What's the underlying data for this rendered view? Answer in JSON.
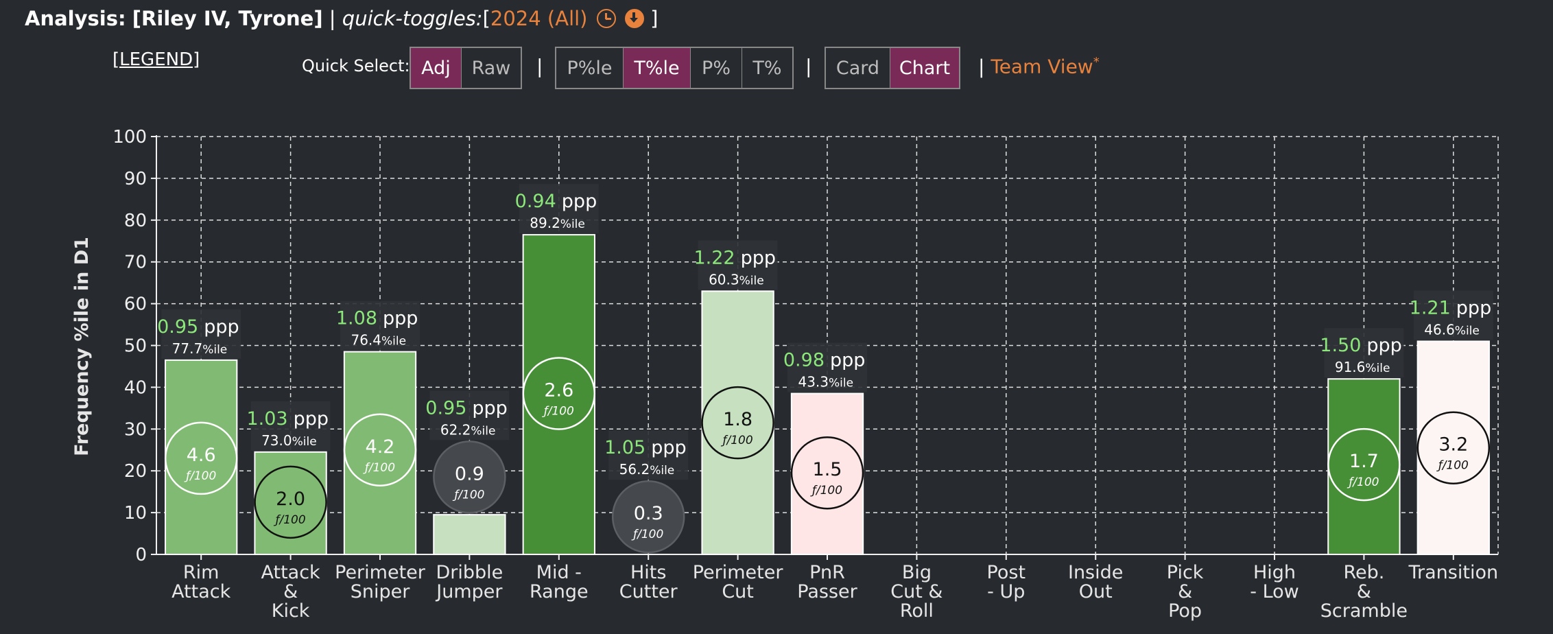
{
  "header": {
    "prefix": "Analysis:",
    "players": "[Riley IV, Tyrone]",
    "sep": "|",
    "toggles_label": "quick-toggles:",
    "open_bracket": "[",
    "season": "2024 (All)",
    "close_bracket": "]"
  },
  "legend_label": "[LEGEND]",
  "quick_select": {
    "label": "Quick Select:",
    "group1": [
      {
        "label": "Adj",
        "active": true
      },
      {
        "label": "Raw",
        "active": false
      }
    ],
    "group2": [
      {
        "label": "P%le",
        "active": false
      },
      {
        "label": "T%le",
        "active": true
      },
      {
        "label": "P%",
        "active": false
      },
      {
        "label": "T%",
        "active": false
      }
    ],
    "group3": [
      {
        "label": "Card",
        "active": false
      },
      {
        "label": "Chart",
        "active": true
      }
    ],
    "separator": "|",
    "team_view_label": "Team View",
    "team_view_mark": "*"
  },
  "chart_data": {
    "type": "bar",
    "ylabel": "Frequency %ile in D1",
    "ylim": [
      0,
      100
    ],
    "yticks": [
      0,
      10,
      20,
      30,
      40,
      50,
      60,
      70,
      80,
      90,
      100
    ],
    "grid": true,
    "categories": [
      [
        "Rim",
        "Attack"
      ],
      [
        "Attack",
        "&",
        "Kick"
      ],
      [
        "Perimeter",
        "Sniper"
      ],
      [
        "Dribble",
        "Jumper"
      ],
      [
        "Mid -",
        "Range"
      ],
      [
        "Hits",
        "Cutter"
      ],
      [
        "Perimeter",
        "Cut"
      ],
      [
        "PnR",
        "Passer"
      ],
      [
        "Big",
        "Cut &",
        "Roll"
      ],
      [
        "Post",
        "- Up"
      ],
      [
        "Inside",
        "Out"
      ],
      [
        "Pick",
        "&",
        "Pop"
      ],
      [
        "High",
        "- Low"
      ],
      [
        "Reb.",
        "&",
        "Scramble"
      ],
      [
        "Transition"
      ]
    ],
    "values": [
      46.5,
      24.5,
      48.5,
      9.5,
      76.5,
      null,
      63,
      38.5,
      null,
      null,
      null,
      null,
      null,
      42,
      51
    ],
    "bar_colors": [
      "#81ba73",
      "#81ba73",
      "#81ba73",
      "#c6e0c0",
      "#478f37",
      null,
      "#c6e0c0",
      "#fde6e5",
      null,
      null,
      null,
      null,
      null,
      "#478f37",
      "#fdf5f3"
    ],
    "ppp": [
      "0.95",
      "1.03",
      "1.08",
      "0.95",
      "0.94",
      "1.05",
      "1.22",
      "0.98",
      null,
      null,
      null,
      null,
      null,
      "1.50",
      "1.21"
    ],
    "ppp_unit": "ppp",
    "pctile": [
      "77.7",
      "73.0",
      "76.4",
      "62.2",
      "89.2",
      "56.2",
      "60.3",
      "43.3",
      null,
      null,
      null,
      null,
      null,
      "91.6",
      "46.6"
    ],
    "pctile_unit": "%ile",
    "freq": [
      "4.6",
      "2.0",
      "4.2",
      "0.9",
      "2.6",
      "0.3",
      "1.8",
      "1.5",
      null,
      null,
      null,
      null,
      null,
      "1.7",
      "3.2"
    ],
    "freq_unit": "ƒ/100",
    "bubble_y": [
      23,
      12.5,
      25,
      18.5,
      38.5,
      9,
      31.5,
      19.5,
      null,
      null,
      null,
      null,
      null,
      21.5,
      25.5
    ],
    "bubble_fill": [
      "#81ba73",
      "#81ba73",
      "#81ba73",
      "#45484c",
      "#478f37",
      "#45484c",
      "#c6e0c0",
      "#fde6e5",
      null,
      null,
      null,
      null,
      null,
      "#478f37",
      "#fdf5f3"
    ],
    "bubble_stroke": [
      "#ffffff",
      "#111111",
      "#ffffff",
      "#5c5f63",
      "#ffffff",
      "#5c5f63",
      "#111111",
      "#111111",
      null,
      null,
      null,
      null,
      null,
      "#ffffff",
      "#111111"
    ],
    "bubble_text": [
      "#ffffff",
      "#111111",
      "#ffffff",
      "#ffffff",
      "#ffffff",
      "#ffffff",
      "#111111",
      "#111111",
      null,
      null,
      null,
      null,
      null,
      "#ffffff",
      "#111111"
    ],
    "ppp_color": "#8ce87a",
    "accent": "#e8823c",
    "active_button": "#7a2a57"
  }
}
